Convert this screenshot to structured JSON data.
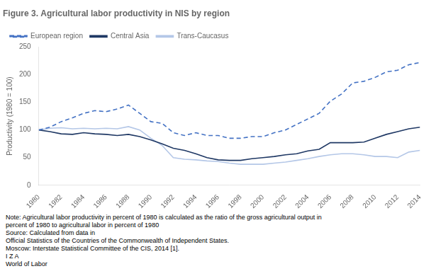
{
  "chart_data": {
    "type": "line",
    "title": "Figure 3. Agricultural labor productivity in NIS by region",
    "y_label": "Productivity (1980 = 100)",
    "x": [
      1980,
      1981,
      1982,
      1983,
      1984,
      1985,
      1986,
      1987,
      1988,
      1989,
      1990,
      1991,
      1992,
      1993,
      1994,
      1995,
      1996,
      1997,
      1998,
      1999,
      2000,
      2001,
      2002,
      2003,
      2004,
      2005,
      2006,
      2007,
      2008,
      2009,
      2010,
      2011,
      2012,
      2013,
      2014
    ],
    "series": [
      {
        "name": "European region",
        "color": "#4472c4",
        "line_style": "dashed",
        "values": [
          100,
          105,
          115,
          122,
          130,
          135,
          133,
          138,
          145,
          130,
          115,
          112,
          95,
          90,
          95,
          90,
          90,
          85,
          85,
          88,
          88,
          95,
          100,
          110,
          120,
          130,
          152,
          165,
          185,
          188,
          195,
          205,
          208,
          218,
          222
        ]
      },
      {
        "name": "Central Asia",
        "color": "#1f3864",
        "line_style": "solid",
        "values": [
          100,
          97,
          93,
          92,
          95,
          93,
          92,
          90,
          92,
          88,
          82,
          75,
          67,
          63,
          57,
          50,
          46,
          45,
          45,
          48,
          50,
          52,
          55,
          57,
          62,
          65,
          77,
          77,
          77,
          78,
          85,
          92,
          97,
          102,
          105
        ]
      },
      {
        "name": "Trans-Caucasus",
        "color": "#b4c7e7",
        "line_style": "solid",
        "values": [
          100,
          103,
          104,
          102,
          103,
          102,
          103,
          102,
          106,
          100,
          85,
          72,
          50,
          47,
          46,
          44,
          43,
          40,
          38,
          38,
          38,
          40,
          42,
          45,
          48,
          52,
          55,
          57,
          57,
          55,
          52,
          52,
          50,
          60,
          63
        ]
      }
    ],
    "xlim": [
      1980,
      2014
    ],
    "xticks": [
      1980,
      1982,
      1984,
      1986,
      1988,
      1990,
      1992,
      1994,
      1996,
      1998,
      2000,
      2002,
      2004,
      2006,
      2008,
      2010,
      2012,
      2014
    ],
    "ylim": [
      0,
      250
    ],
    "yticks": [
      0,
      50,
      100,
      150,
      200,
      250
    ],
    "grid": false,
    "legend": "upper left",
    "annotations": [
      "Note: Agricultural labor productivity in percent of 1980 is calculated as the ratio of the gross agricultural output in",
      "percent of 1980 to agricultural labor in percent of 1980",
      "Source: Calculated from data in ",
      "Official Statistics of the Countries of the Commonwealth of Independent States.",
      "Moscow: Interstate Statistical Committee of the CIS, 2014 [1].",
      "I Z A",
      "World of Labor"
    ]
  }
}
